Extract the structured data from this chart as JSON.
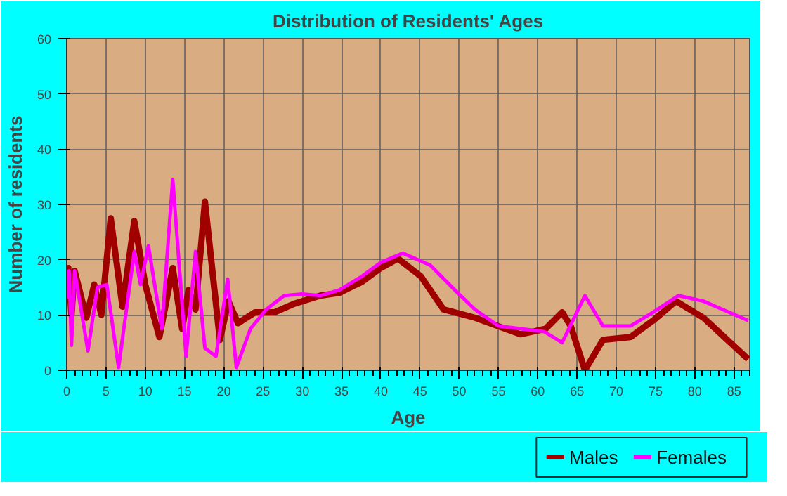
{
  "chart_data": {
    "type": "line",
    "title": "Distribution of Residents' Ages",
    "xlabel": "Age",
    "ylabel": "Number of residents",
    "xlim": [
      0,
      87
    ],
    "ylim": [
      0,
      60
    ],
    "xticks": [
      0,
      5,
      10,
      15,
      20,
      25,
      30,
      35,
      40,
      45,
      50,
      55,
      60,
      65,
      70,
      75,
      80,
      85
    ],
    "yticks": [
      0,
      10,
      20,
      30,
      40,
      50,
      60
    ],
    "grid": true,
    "legend": "bottom right",
    "marker": "none",
    "line_style": "solid",
    "series": [
      {
        "name": "Males",
        "color": "#a00000",
        "x": [
          0,
          0.2,
          0.6,
          1.0,
          2.5,
          3.5,
          4.4,
          5.6,
          7.1,
          8.6,
          10.0,
          11.8,
          13.5,
          14.7,
          15.5,
          16.4,
          17.6,
          19.5,
          20.6,
          21.8,
          24,
          26.5,
          28.9,
          32.3,
          34.7,
          37.6,
          40,
          42.2,
          45.1,
          48,
          52,
          57.8,
          61,
          63.1,
          64.2,
          66,
          68.3,
          71.8,
          74.7,
          77.6,
          81.1,
          86.8
        ],
        "values": [
          17,
          18.5,
          10,
          18,
          9.5,
          15.5,
          10,
          27.5,
          11.5,
          27,
          15.5,
          6,
          18.5,
          7.5,
          14.5,
          11,
          30.5,
          5.5,
          12.5,
          8.5,
          10.5,
          10.5,
          12,
          13.5,
          14,
          16,
          18.5,
          20.2,
          17,
          11,
          9.5,
          6.5,
          7.5,
          10.5,
          8,
          0,
          5.5,
          6,
          9,
          12.5,
          9.5,
          2
        ]
      },
      {
        "name": "Females",
        "color": "#ff00ff",
        "x": [
          0,
          0.3,
          0.6,
          1.0,
          2.7,
          3.9,
          5.1,
          6.6,
          8.6,
          9.4,
          10.4,
          12.1,
          13.5,
          15.2,
          16.4,
          17.6,
          19,
          20.5,
          21.6,
          23.4,
          25.4,
          27.7,
          30,
          32.3,
          34.7,
          37.6,
          40,
          42.8,
          46.3,
          49.8,
          52,
          55,
          60.8,
          63.1,
          66,
          68.3,
          71.8,
          74.7,
          77.9,
          81.1,
          86.8
        ],
        "values": [
          13,
          18,
          4.5,
          18,
          3.5,
          15,
          15.5,
          0.5,
          21.5,
          15.5,
          22.5,
          7.5,
          34.5,
          2.5,
          21.5,
          4,
          2.5,
          16.5,
          0.5,
          7.5,
          11,
          13.5,
          13.8,
          13.5,
          14.5,
          17,
          19.5,
          21.2,
          19,
          14,
          11,
          8,
          7,
          5,
          13.5,
          8,
          8,
          10.5,
          13.5,
          12.5,
          9
        ]
      }
    ]
  }
}
